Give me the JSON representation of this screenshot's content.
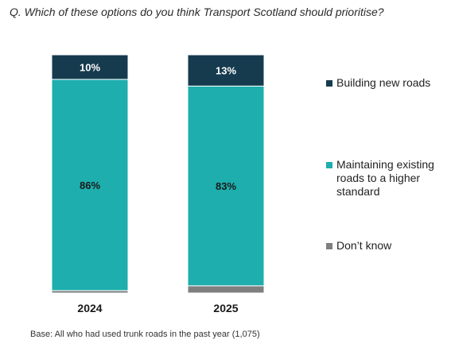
{
  "question": "Q. Which of these options do you think Transport Scotland should prioritise?",
  "base_note": "Base: All who had used trunk roads in the past year (1,075)",
  "chart_data": {
    "type": "bar",
    "stacked": true,
    "percent_scale": true,
    "categories": [
      "2024",
      "2025"
    ],
    "series": [
      {
        "name": "Don't know",
        "color": "#7f7f7f",
        "values": [
          1,
          3
        ],
        "labels": [
          "",
          ""
        ]
      },
      {
        "name": "Maintaining existing roads to a higher standard",
        "color": "#1daead",
        "values": [
          86,
          83
        ],
        "labels": [
          "86%",
          "83%"
        ]
      },
      {
        "name": "Building new roads",
        "color": "#163b4f",
        "values": [
          10,
          13
        ],
        "labels": [
          "10%",
          "13%"
        ]
      }
    ],
    "legend_placement": "right",
    "ylim": [
      0,
      100
    ],
    "grid": false
  },
  "legend": [
    {
      "label": "Building new roads",
      "color": "#163b4f"
    },
    {
      "label": "Maintaining existing roads to a higher standard",
      "color": "#1daead"
    },
    {
      "label": "Don’t know",
      "color": "#7f7f7f"
    }
  ]
}
